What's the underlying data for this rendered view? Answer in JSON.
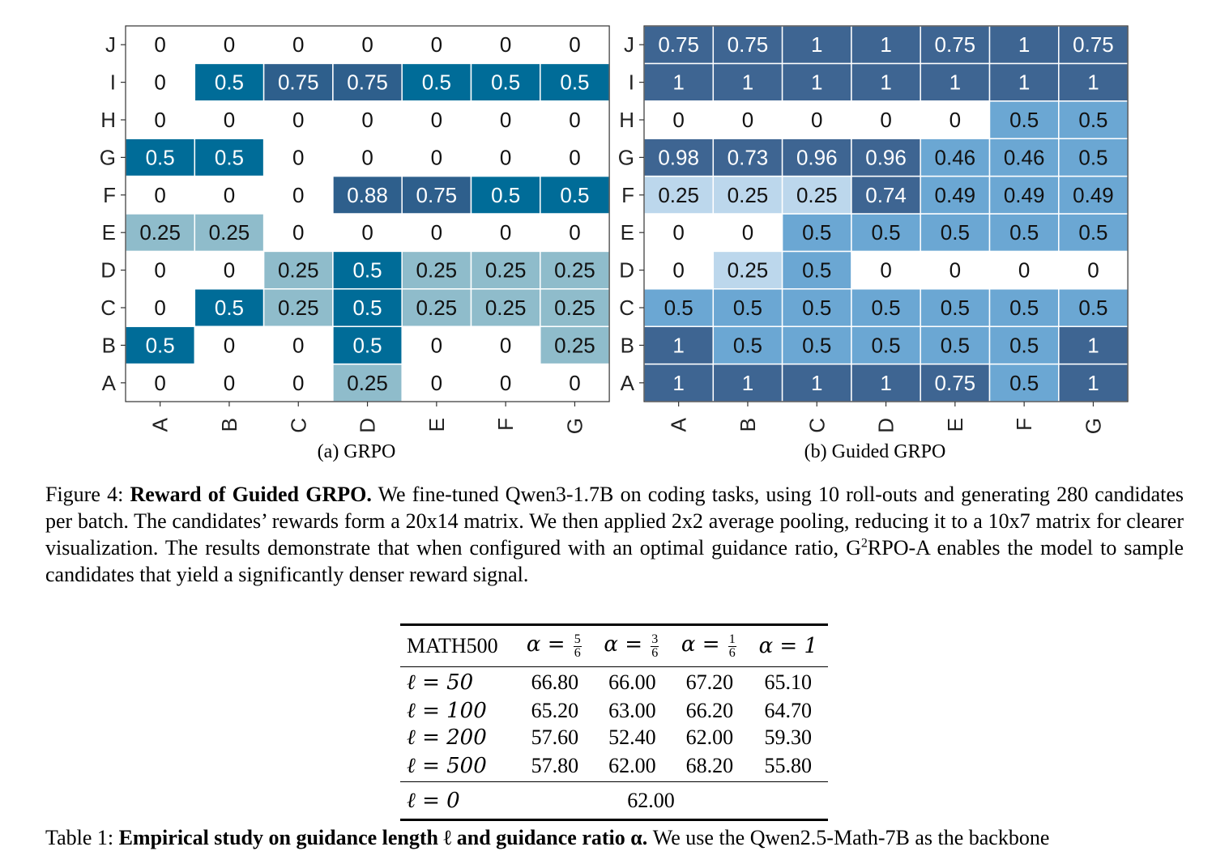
{
  "figure": {
    "panels": [
      {
        "subcaption": "(a) GRPO"
      },
      {
        "subcaption": "(b) Guided GRPO"
      }
    ],
    "caption": {
      "label": "Figure 4:",
      "title": "Reward of Guided GRPO.",
      "text_before_sup": "We fine-tuned Qwen3-1.7B on coding tasks, using 10 roll-outs and generating 280 candidates per batch. The candidates’ rewards form a 20x14 matrix. We then applied 2x2 average pooling, reducing it to a 10x7 matrix for clearer visualization. The results demonstrate that when configured with an optimal guidance ratio, G",
      "sup": "2",
      "text_after_sup": "RPO-A enables the model to sample candidates that yield a significantly denser reward signal."
    }
  },
  "chart_data": [
    {
      "type": "heatmap",
      "title": "(a) GRPO",
      "x_categories": [
        "A",
        "B",
        "C",
        "D",
        "E",
        "F",
        "G"
      ],
      "y_categories": [
        "A",
        "B",
        "C",
        "D",
        "E",
        "F",
        "G",
        "H",
        "I",
        "J"
      ],
      "values": [
        [
          0,
          0,
          0,
          0.25,
          0,
          0,
          0
        ],
        [
          0.5,
          0,
          0,
          0.5,
          0,
          0,
          0.25
        ],
        [
          0,
          0.5,
          0.25,
          0.5,
          0.25,
          0.25,
          0.25
        ],
        [
          0,
          0,
          0.25,
          0.5,
          0.25,
          0.25,
          0.25
        ],
        [
          0.25,
          0.25,
          0,
          0,
          0,
          0,
          0
        ],
        [
          0,
          0,
          0,
          0.88,
          0.75,
          0.5,
          0.5
        ],
        [
          0.5,
          0.5,
          0,
          0,
          0,
          0,
          0
        ],
        [
          0,
          0,
          0,
          0,
          0,
          0,
          0
        ],
        [
          0,
          0.5,
          0.75,
          0.75,
          0.5,
          0.5,
          0.5
        ],
        [
          0,
          0,
          0,
          0,
          0,
          0,
          0
        ]
      ],
      "colors": {
        "zero": "#ffffff",
        "low": "#8fbccb",
        "mid": "#006c98",
        "high": "#2e5f8c"
      },
      "grid": false
    },
    {
      "type": "heatmap",
      "title": "(b) Guided GRPO",
      "x_categories": [
        "A",
        "B",
        "C",
        "D",
        "E",
        "F",
        "G"
      ],
      "y_categories": [
        "A",
        "B",
        "C",
        "D",
        "E",
        "F",
        "G",
        "H",
        "I",
        "J"
      ],
      "values": [
        [
          1,
          1,
          1,
          1,
          0.75,
          0.5,
          1
        ],
        [
          1,
          0.5,
          0.5,
          0.5,
          0.5,
          0.5,
          1
        ],
        [
          0.5,
          0.5,
          0.5,
          0.5,
          0.5,
          0.5,
          0.5
        ],
        [
          0,
          0.25,
          0.5,
          0,
          0,
          0,
          0
        ],
        [
          0,
          0,
          0.5,
          0.5,
          0.5,
          0.5,
          0.5
        ],
        [
          0.25,
          0.25,
          0.25,
          0.74,
          0.49,
          0.49,
          0.49
        ],
        [
          0.98,
          0.73,
          0.96,
          0.96,
          0.46,
          0.46,
          0.5
        ],
        [
          0,
          0,
          0,
          0,
          0,
          0.5,
          0.5
        ],
        [
          1,
          1,
          1,
          1,
          1,
          1,
          1
        ],
        [
          0.75,
          0.75,
          1,
          1,
          0.75,
          1,
          0.75
        ]
      ],
      "colors": {
        "zero": "#ffffff",
        "low": "#bcd7ec",
        "mid": "#6ba7d3",
        "mid2": "#5f8fbf",
        "high": "#3e6592"
      },
      "grid": false
    }
  ],
  "table": {
    "header": {
      "first": "MATH500",
      "alphas": [
        [
          "5",
          "6"
        ],
        [
          "3",
          "6"
        ],
        [
          "1",
          "6"
        ]
      ],
      "last": "α = 1",
      "alpha_symbol": "α = "
    },
    "rows": [
      {
        "label": "ℓ = 50",
        "values": [
          "66.80",
          "66.00",
          "67.20",
          "65.10"
        ]
      },
      {
        "label": "ℓ = 100",
        "values": [
          "65.20",
          "63.00",
          "66.20",
          "64.70"
        ]
      },
      {
        "label": "ℓ = 200",
        "values": [
          "57.60",
          "52.40",
          "62.00",
          "59.30"
        ]
      },
      {
        "label": "ℓ = 500",
        "values": [
          "57.80",
          "62.00",
          "68.20",
          "55.80"
        ]
      }
    ],
    "baseline": {
      "label": "ℓ = 0",
      "value": "62.00"
    },
    "caption": {
      "label": "Table 1:",
      "title": "Empirical study on guidance length ℓ and guidance ratio α.",
      "text": "We use the Qwen2.5-Math-7B as the backbone"
    }
  }
}
